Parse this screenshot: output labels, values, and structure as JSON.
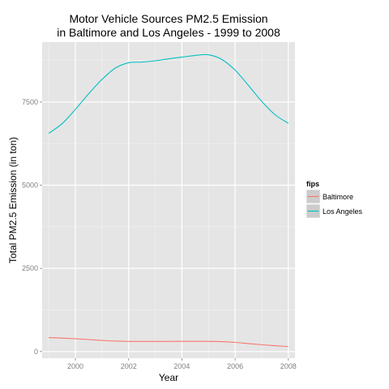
{
  "chart_data": {
    "type": "line",
    "title_line1": "Motor Vehicle Sources PM2.5 Emission",
    "title_line2": "in Baltimore and Los Angeles - 1999 to 2008",
    "xlabel": "Year",
    "ylabel": "Total PM2.5 Emission (in ton)",
    "xlim": [
      1998.75,
      2008.25
    ],
    "ylim": [
      -200,
      9300
    ],
    "x_ticks": [
      2000,
      2002,
      2004,
      2006,
      2008
    ],
    "y_ticks": [
      0,
      2500,
      5000,
      7500
    ],
    "x_tick_labels": [
      "2000",
      "2002",
      "2004",
      "2006",
      "2008"
    ],
    "y_tick_labels": [
      "0",
      "2500",
      "5000",
      "7500"
    ],
    "grid": true,
    "legend": {
      "title": "fips",
      "placement": "right"
    },
    "series": [
      {
        "name": "Baltimore",
        "color": "#F8766D",
        "x": [
          1999,
          1999.5,
          2000,
          2000.5,
          2001,
          2001.5,
          2002,
          2002.5,
          2003,
          2003.5,
          2004,
          2004.5,
          2005,
          2005.5,
          2006,
          2006.5,
          2007,
          2007.5,
          2008
        ],
        "values": [
          420,
          405,
          385,
          360,
          335,
          315,
          305,
          303,
          303,
          305,
          307,
          308,
          307,
          298,
          275,
          240,
          205,
          175,
          150
        ]
      },
      {
        "name": "Los Angeles",
        "color": "#00BFC4",
        "x": [
          1999,
          1999.5,
          2000,
          2000.5,
          2001,
          2001.5,
          2002,
          2002.5,
          2003,
          2003.5,
          2004,
          2004.5,
          2005,
          2005.5,
          2006,
          2006.5,
          2007,
          2007.5,
          2008
        ],
        "values": [
          6560,
          6850,
          7280,
          7750,
          8180,
          8520,
          8680,
          8700,
          8740,
          8800,
          8850,
          8900,
          8920,
          8780,
          8460,
          8000,
          7520,
          7120,
          6860
        ]
      }
    ]
  }
}
